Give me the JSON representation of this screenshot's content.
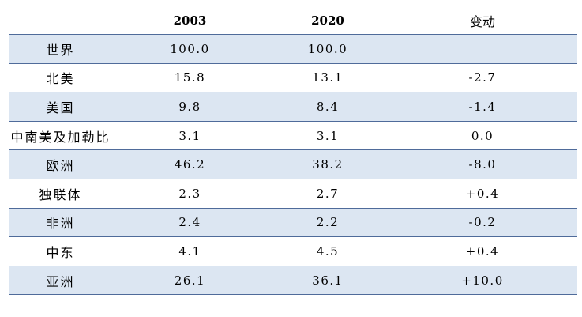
{
  "table": {
    "headers": [
      "",
      "2003",
      "2020",
      "变动"
    ],
    "rows": [
      {
        "region": "世界",
        "y2003": "100.0",
        "y2020": "100.0",
        "change": ""
      },
      {
        "region": "北美",
        "y2003": "15.8",
        "y2020": "13.1",
        "change": "-2.7"
      },
      {
        "region": "美国",
        "y2003": "9.8",
        "y2020": "8.4",
        "change": "-1.4"
      },
      {
        "region": "中南美及加勒比",
        "y2003": "3.1",
        "y2020": "3.1",
        "change": "0.0"
      },
      {
        "region": "欧洲",
        "y2003": "46.2",
        "y2020": "38.2",
        "change": "-8.0"
      },
      {
        "region": "独联体",
        "y2003": "2.3",
        "y2020": "2.7",
        "change": "+0.4"
      },
      {
        "region": "非洲",
        "y2003": "2.4",
        "y2020": "2.2",
        "change": "-0.2"
      },
      {
        "region": "中东",
        "y2003": "4.1",
        "y2020": "4.5",
        "change": "+0.4"
      },
      {
        "region": "亚洲",
        "y2003": "26.1",
        "y2020": "36.1",
        "change": "+10.0"
      }
    ]
  },
  "colors": {
    "row_shade": "#dce6f2",
    "rule": "#4f6b9a"
  }
}
